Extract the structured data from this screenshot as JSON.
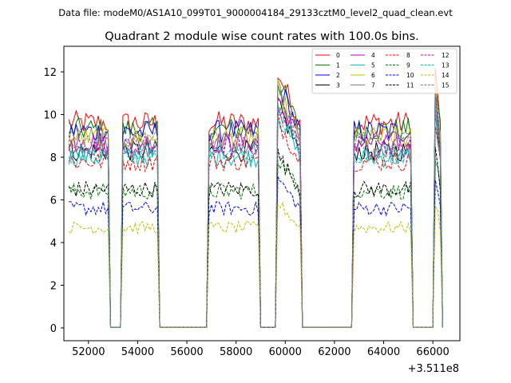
{
  "chart_data": {
    "type": "line",
    "suptitle": "Data file: modeM0/AS1A10_099T01_9000004184_29133cztM0_level2_quad_clean.evt",
    "title": "Quadrant 2 module wise count rates with 100.0s bins.",
    "xlabel": "",
    "ylabel": "",
    "x_offset_label": "+3.511e8",
    "xlim": [
      51000,
      67100
    ],
    "ylim": [
      -0.6,
      13.2
    ],
    "x_ticks": [
      52000,
      54000,
      56000,
      58000,
      60000,
      62000,
      64000,
      66000
    ],
    "y_ticks": [
      0,
      2,
      4,
      6,
      8,
      10,
      12
    ],
    "x_tick_labels": [
      "52000",
      "54000",
      "56000",
      "58000",
      "60000",
      "62000",
      "64000",
      "66000"
    ],
    "y_tick_labels": [
      "0",
      "2",
      "4",
      "6",
      "8",
      "10",
      "12"
    ],
    "legend_position": "top-right",
    "segments": [
      {
        "start": 51200,
        "end": 52800,
        "peak": false
      },
      {
        "start": 53400,
        "end": 54800,
        "peak": false
      },
      {
        "start": 56900,
        "end": 58900,
        "peak": false
      },
      {
        "start": 59700,
        "end": 60600,
        "peak": true
      },
      {
        "start": 62800,
        "end": 65100,
        "peak": false
      },
      {
        "start": 66100,
        "end": 66300,
        "peak": true
      }
    ],
    "bin_size": 100,
    "zero_level": 0.02,
    "series": [
      {
        "name": "0",
        "color": "#ff0000",
        "dash": "solid",
        "base": 9.6
      },
      {
        "name": "1",
        "color": "#008000",
        "dash": "solid",
        "base": 9.3
      },
      {
        "name": "2",
        "color": "#0000ff",
        "dash": "solid",
        "base": 9.2
      },
      {
        "name": "3",
        "color": "#000000",
        "dash": "solid",
        "base": 8.3
      },
      {
        "name": "4",
        "color": "#bf00bf",
        "dash": "solid",
        "base": 8.7
      },
      {
        "name": "5",
        "color": "#00bfbf",
        "dash": "solid",
        "base": 8.0
      },
      {
        "name": "6",
        "color": "#bfbf00",
        "dash": "solid",
        "base": 8.9
      },
      {
        "name": "7",
        "color": "#808080",
        "dash": "solid",
        "base": 8.4
      },
      {
        "name": "8",
        "color": "#ff0000",
        "dash": "dashed",
        "base": 7.8
      },
      {
        "name": "9",
        "color": "#008000",
        "dash": "dashed",
        "base": 6.4
      },
      {
        "name": "10",
        "color": "#0000ff",
        "dash": "dashed",
        "base": 5.6
      },
      {
        "name": "11",
        "color": "#000000",
        "dash": "dashed",
        "base": 6.5
      },
      {
        "name": "12",
        "color": "#bf00bf",
        "dash": "dashed",
        "base": 8.5
      },
      {
        "name": "13",
        "color": "#00bfbf",
        "dash": "dashed",
        "base": 8.2
      },
      {
        "name": "14",
        "color": "#bfbf00",
        "dash": "dashed",
        "base": 4.7
      },
      {
        "name": "15",
        "color": "#808080",
        "dash": "dashed",
        "base": 8.8
      }
    ]
  }
}
